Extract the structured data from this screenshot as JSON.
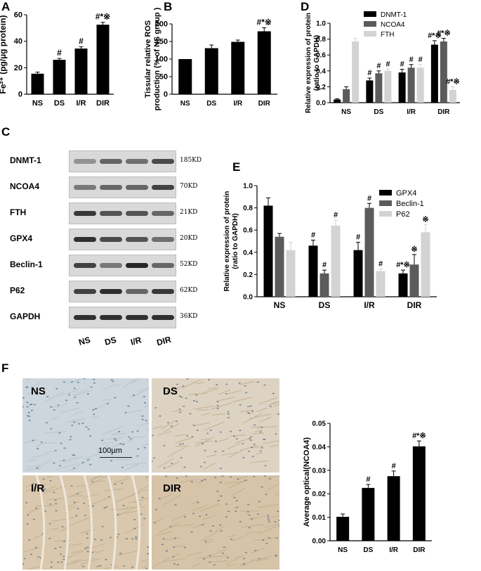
{
  "panels": {
    "A": "A",
    "B": "B",
    "C": "C",
    "D": "D",
    "E": "E",
    "F": "F"
  },
  "colors": {
    "black": "#000000",
    "dark_gray": "#5b5b5b",
    "light_gray": "#d3d3d3"
  },
  "chart_data": [
    {
      "id": "A",
      "type": "bar",
      "categories": [
        "NS",
        "DS",
        "I/R",
        "DIR"
      ],
      "values": [
        15.5,
        26,
        34.5,
        52.5
      ],
      "errors": [
        1.2,
        1.0,
        1.3,
        1.8
      ],
      "annotations": [
        "",
        "#",
        "#",
        "#*※"
      ],
      "ylabel": "Fe²⁺ (pg/µg protein)",
      "ylim": [
        0,
        60
      ],
      "yticks": [
        "0",
        "20",
        "40",
        "60"
      ],
      "ytick_values": [
        0,
        20,
        40,
        60
      ]
    },
    {
      "id": "B",
      "type": "bar",
      "categories": [
        "NS",
        "DS",
        "I/R",
        "DIR"
      ],
      "values": [
        100,
        131,
        149,
        179
      ],
      "errors": [
        0,
        9,
        5,
        10
      ],
      "annotations": [
        "",
        "",
        "",
        "#*※"
      ],
      "ylabel_lines": [
        "Tissular relative ROS",
        "production (% of NS group )"
      ],
      "ylim": [
        0,
        200
      ],
      "yticks": [
        "0",
        "50",
        "100",
        "150",
        "200"
      ],
      "ytick_values": [
        0,
        50,
        100,
        150,
        200
      ]
    },
    {
      "id": "D",
      "type": "bar",
      "categories": [
        "NS",
        "DS",
        "I/R",
        "DIR"
      ],
      "series": [
        {
          "name": "DNMT-1",
          "color": "#000000",
          "values": [
            0.04,
            0.28,
            0.38,
            0.73
          ],
          "errors": [
            0.01,
            0.03,
            0.04,
            0.05
          ],
          "annotations": [
            "",
            "#",
            "#",
            "#*※"
          ]
        },
        {
          "name": "NCOA4",
          "color": "#5b5b5b",
          "values": [
            0.17,
            0.37,
            0.44,
            0.77
          ],
          "errors": [
            0.03,
            0.03,
            0.04,
            0.04
          ],
          "annotations": [
            "",
            "#",
            "#",
            "#*※"
          ]
        },
        {
          "name": "FTH",
          "color": "#d3d3d3",
          "values": [
            0.77,
            0.4,
            0.44,
            0.16
          ],
          "errors": [
            0.04,
            0.02,
            0.04,
            0.04
          ],
          "annotations": [
            "",
            "#",
            "#",
            "#*※"
          ]
        }
      ],
      "ylabel_lines": [
        "Relative expression of protein",
        "(ratio to GAPDH)"
      ],
      "ylim": [
        0,
        1.0
      ],
      "yticks": [
        "0.0",
        "0.2",
        "0.4",
        "0.6",
        "0.8",
        "1.0"
      ],
      "ytick_values": [
        0,
        0.2,
        0.4,
        0.6,
        0.8,
        1.0
      ]
    },
    {
      "id": "E",
      "type": "bar",
      "categories": [
        "NS",
        "DS",
        "I/R",
        "DIR"
      ],
      "series": [
        {
          "name": "GPX4",
          "color": "#000000",
          "values": [
            0.82,
            0.46,
            0.42,
            0.21
          ],
          "errors": [
            0.07,
            0.05,
            0.07,
            0.03
          ],
          "annotations": [
            "",
            "#",
            "#",
            "#*※"
          ]
        },
        {
          "name": "Beclin-1",
          "color": "#5b5b5b",
          "values": [
            0.54,
            0.21,
            0.8,
            0.29
          ],
          "errors": [
            0.03,
            0.03,
            0.04,
            0.09
          ],
          "annotations": [
            "",
            "#",
            "#",
            "※"
          ]
        },
        {
          "name": "P62",
          "color": "#d3d3d3",
          "values": [
            0.42,
            0.64,
            0.23,
            0.58
          ],
          "errors": [
            0.07,
            0.05,
            0.02,
            0.07
          ],
          "annotations": [
            "",
            "#",
            "#",
            "※"
          ]
        }
      ],
      "ylabel_lines": [
        "Relative expression of protein",
        "(ratio to GAPDH)"
      ],
      "ylim": [
        0,
        1.0
      ],
      "yticks": [
        "0.0",
        "0.2",
        "0.4",
        "0.6",
        "0.8",
        "1.0"
      ],
      "ytick_values": [
        0,
        0.2,
        0.4,
        0.6,
        0.8,
        1.0
      ]
    },
    {
      "id": "F",
      "type": "bar",
      "categories": [
        "NS",
        "DS",
        "I/R",
        "DIR"
      ],
      "values": [
        0.0102,
        0.0225,
        0.0275,
        0.0402
      ],
      "errors": [
        0.0012,
        0.0015,
        0.0022,
        0.0023
      ],
      "annotations": [
        "",
        "#",
        "#",
        "#*※"
      ],
      "ylabel": "Average optical(NCOA4)",
      "ylim": [
        0,
        0.05
      ],
      "yticks": [
        "0.00",
        "0.01",
        "0.02",
        "0.03",
        "0.04",
        "0.05"
      ],
      "ytick_values": [
        0,
        0.01,
        0.02,
        0.03,
        0.04,
        0.05
      ]
    }
  ],
  "western_blot": {
    "rows": [
      {
        "protein": "DNMT-1",
        "size": "185KD",
        "intensity": [
          0.35,
          0.6,
          0.55,
          0.75
        ]
      },
      {
        "protein": "NCOA4",
        "size": "70KD",
        "intensity": [
          0.5,
          0.6,
          0.6,
          0.8
        ]
      },
      {
        "protein": "FTH",
        "size": "21KD",
        "intensity": [
          0.85,
          0.7,
          0.7,
          0.6
        ]
      },
      {
        "protein": "GPX4",
        "size": "20KD",
        "intensity": [
          0.9,
          0.75,
          0.7,
          0.55
        ]
      },
      {
        "protein": "Beclin-1",
        "size": "52KD",
        "intensity": [
          0.8,
          0.5,
          0.95,
          0.6
        ]
      },
      {
        "protein": "P62",
        "size": "62KD",
        "intensity": [
          0.8,
          0.9,
          0.6,
          0.85
        ]
      },
      {
        "protein": "GAPDH",
        "size": "36KD",
        "intensity": [
          0.9,
          0.9,
          0.9,
          0.9
        ]
      }
    ],
    "lanes": [
      "NS",
      "DS",
      "I/R",
      "DIR"
    ]
  },
  "micrographs": [
    {
      "label": "NS",
      "tint": "#cdd6dc"
    },
    {
      "label": "DS",
      "tint": "#ddd3c2"
    },
    {
      "label": "I/R",
      "tint": "#d9c8ad"
    },
    {
      "label": "DIR",
      "tint": "#d6c3a8"
    }
  ],
  "scale_bar_label": "100µm"
}
